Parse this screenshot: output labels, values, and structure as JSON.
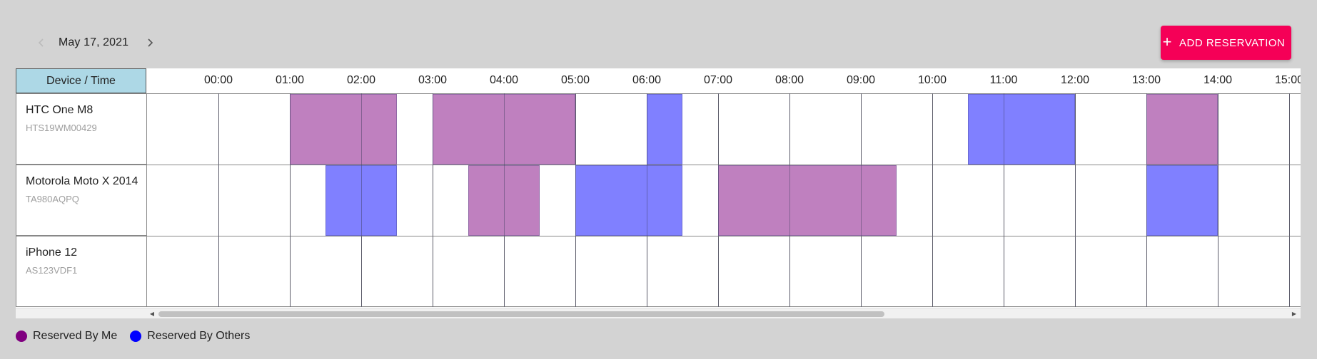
{
  "date_nav": {
    "date": "May 17, 2021",
    "prev_icon": "chevron-left-icon",
    "next_icon": "chevron-right-icon"
  },
  "add_button": {
    "icon": "plus-icon",
    "label": "ADD RESERVATION"
  },
  "grid": {
    "corner_label": "Device / Time",
    "time_labels": [
      "00:00",
      "01:00",
      "02:00",
      "03:00",
      "04:00",
      "05:00",
      "06:00",
      "07:00",
      "08:00",
      "09:00",
      "10:00",
      "11:00",
      "12:00",
      "13:00",
      "14:00",
      "15:00"
    ],
    "devices": [
      {
        "name": "HTC One M8",
        "serial": "HTS19WM00429"
      },
      {
        "name": "Motorola Moto X 2014",
        "serial": "TA980AQPQ"
      },
      {
        "name": "iPhone 12",
        "serial": "AS123VDF1"
      }
    ],
    "reservations": [
      {
        "device": 0,
        "start": 1.0,
        "end": 2.5,
        "owner": "me"
      },
      {
        "device": 0,
        "start": 3.0,
        "end": 5.0,
        "owner": "me"
      },
      {
        "device": 0,
        "start": 6.0,
        "end": 6.5,
        "owner": "others"
      },
      {
        "device": 0,
        "start": 10.5,
        "end": 12.0,
        "owner": "others"
      },
      {
        "device": 0,
        "start": 13.0,
        "end": 14.0,
        "owner": "me"
      },
      {
        "device": 1,
        "start": 1.5,
        "end": 2.5,
        "owner": "others"
      },
      {
        "device": 1,
        "start": 3.5,
        "end": 4.5,
        "owner": "me"
      },
      {
        "device": 1,
        "start": 5.0,
        "end": 6.5,
        "owner": "others"
      },
      {
        "device": 1,
        "start": 7.0,
        "end": 9.5,
        "owner": "me"
      },
      {
        "device": 1,
        "start": 13.0,
        "end": 14.0,
        "owner": "others"
      }
    ]
  },
  "legend": [
    {
      "key": "me",
      "label": "Reserved By Me",
      "color": "#800080"
    },
    {
      "key": "others",
      "label": "Reserved By Others",
      "color": "#0000ff"
    }
  ],
  "colors": {
    "me_block": "#bf80bf",
    "others_block": "#8080ff",
    "accent": "#f50057",
    "header_cell": "#add8e6"
  }
}
